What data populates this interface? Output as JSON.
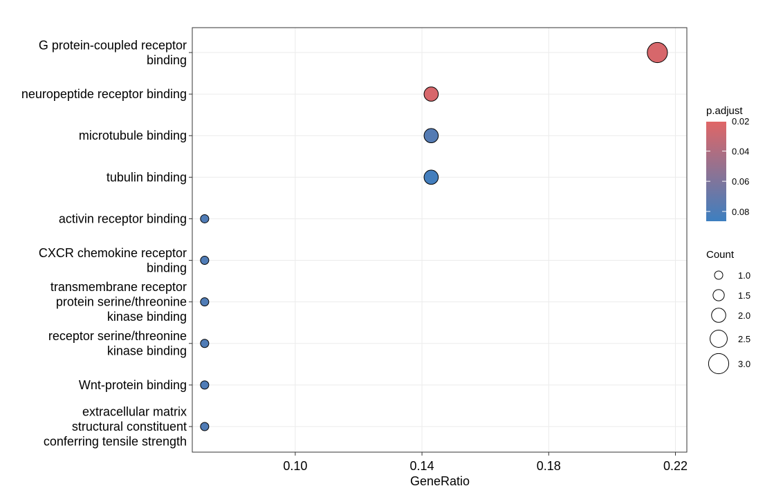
{
  "chart_data": {
    "type": "scatter",
    "xlabel": "GeneRatio",
    "x_ticks": [
      "0.10",
      "0.14",
      "0.18",
      "0.22"
    ],
    "xlim": [
      0.0675,
      0.2236
    ],
    "grid": true,
    "categories": [
      [
        "G protein-coupled receptor",
        "binding"
      ],
      [
        "neuropeptide receptor binding"
      ],
      [
        "microtubule binding"
      ],
      [
        "tubulin binding"
      ],
      [
        "activin receptor binding"
      ],
      [
        "CXCR chemokine receptor",
        "binding"
      ],
      [
        "transmembrane receptor",
        "protein serine/threonine",
        "kinase binding"
      ],
      [
        "receptor serine/threonine",
        "kinase binding"
      ],
      [
        "Wnt-protein binding"
      ],
      [
        "extracellular matrix",
        "structural constituent",
        "conferring tensile strength"
      ]
    ],
    "points": [
      {
        "gene_ratio": 0.2143,
        "count": 3,
        "p_adjust": 0.024
      },
      {
        "gene_ratio": 0.1429,
        "count": 2,
        "p_adjust": 0.024
      },
      {
        "gene_ratio": 0.1429,
        "count": 2,
        "p_adjust": 0.077
      },
      {
        "gene_ratio": 0.1429,
        "count": 2,
        "p_adjust": 0.084
      },
      {
        "gene_ratio": 0.0714,
        "count": 1,
        "p_adjust": 0.079
      },
      {
        "gene_ratio": 0.0714,
        "count": 1,
        "p_adjust": 0.079
      },
      {
        "gene_ratio": 0.0714,
        "count": 1,
        "p_adjust": 0.079
      },
      {
        "gene_ratio": 0.0714,
        "count": 1,
        "p_adjust": 0.079
      },
      {
        "gene_ratio": 0.0714,
        "count": 1,
        "p_adjust": 0.079
      },
      {
        "gene_ratio": 0.0714,
        "count": 1,
        "p_adjust": 0.079
      }
    ],
    "color_legend": {
      "title": "p.adjust",
      "labels": [
        "0.02",
        "0.04",
        "0.06",
        "0.08"
      ],
      "values": [
        0.02,
        0.04,
        0.06,
        0.08
      ],
      "range": [
        0.0205,
        0.0865
      ],
      "low_color": "#E06666",
      "high_color": "#3D7FC0"
    },
    "size_legend": {
      "title": "Count",
      "labels": [
        "1.0",
        "1.5",
        "2.0",
        "2.5",
        "3.0"
      ],
      "values": [
        1.0,
        1.5,
        2.0,
        2.5,
        3.0
      ]
    }
  }
}
